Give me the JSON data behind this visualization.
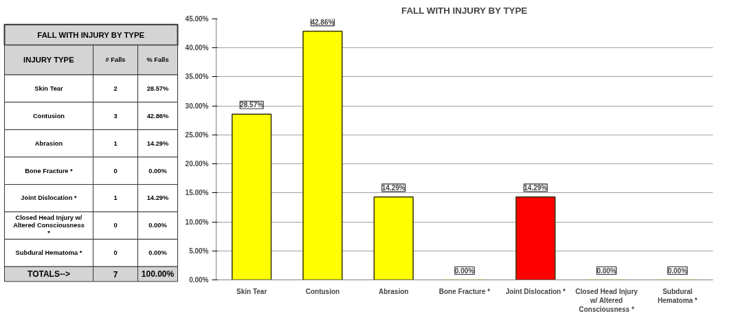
{
  "chart_data": [
    {
      "type": "other",
      "title": "FALL WITH INJURY BY TYPE",
      "annotations": [
        "INJURY TYPE",
        "# Falls",
        "% Falls",
        "Skin Tear",
        "2",
        "28.57%",
        "Contusion",
        "3",
        "42.86%",
        "Abrasion",
        "1",
        "14.29%",
        "Bone Fracture *",
        "0",
        "0.00%",
        "Joint Dislocation *",
        "1",
        "14.29%",
        "Closed Head Injury w/\nAltered Consciousness\n*",
        "0",
        "0.00%",
        "Subdural Hematoma *",
        "0",
        "0.00%",
        "TOTALS-->",
        "7",
        "100.00%"
      ]
    },
    {
      "type": "bar",
      "title": "FALL WITH INJURY BY TYPE",
      "categories": [
        "Skin Tear",
        "Contusion",
        "Abrasion",
        "Bone Fracture *",
        "Joint Dislocation *",
        "Closed Head Injury\nw/ Altered\nConsciousness *",
        "Subdural\nHematoma *"
      ],
      "values": [
        28.57,
        42.86,
        14.29,
        0,
        14.29,
        0,
        0
      ],
      "colors": [
        "#ffff00",
        "#ffff00",
        "#ffff00",
        "#ffff00",
        "#ff0000",
        "#ffff00",
        "#ffff00"
      ],
      "value_labels": [
        "28.57%",
        "42.86%",
        "14.29%",
        "0.00%",
        "14.29%",
        "0.00%",
        "0.00%"
      ],
      "ylim": [
        0,
        45
      ],
      "yticks": [
        {
          "value": 0,
          "label": "0.00%"
        },
        {
          "value": 5,
          "label": "5.00%"
        },
        {
          "value": 10,
          "label": "10.00%"
        },
        {
          "value": 15,
          "label": "15.00%"
        },
        {
          "value": 20,
          "label": "20.00%"
        },
        {
          "value": 25,
          "label": "25.00%"
        },
        {
          "value": 30,
          "label": "30.00%"
        },
        {
          "value": 35,
          "label": "35.00%"
        },
        {
          "value": 40,
          "label": "40.00%"
        },
        {
          "value": 45,
          "label": "45.00%"
        }
      ],
      "grid": "y"
    }
  ]
}
